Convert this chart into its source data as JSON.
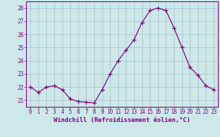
{
  "x": [
    0,
    1,
    2,
    3,
    4,
    5,
    6,
    7,
    8,
    9,
    10,
    11,
    12,
    13,
    14,
    15,
    16,
    17,
    18,
    19,
    20,
    21,
    22,
    23
  ],
  "y": [
    22.0,
    21.6,
    22.0,
    22.1,
    21.8,
    21.1,
    20.9,
    20.85,
    20.8,
    21.8,
    23.0,
    24.0,
    24.8,
    25.6,
    26.9,
    27.8,
    28.0,
    27.8,
    26.5,
    25.0,
    23.5,
    22.9,
    22.1,
    21.8
  ],
  "line_color": "#800080",
  "marker": "+",
  "markersize": 4,
  "linewidth": 0.9,
  "xlabel": "Windchill (Refroidissement éolien,°C)",
  "ylim": [
    20.5,
    28.5
  ],
  "yticks": [
    21,
    22,
    23,
    24,
    25,
    26,
    27,
    28
  ],
  "xlim": [
    -0.5,
    23.5
  ],
  "xticks": [
    0,
    1,
    2,
    3,
    4,
    5,
    6,
    7,
    8,
    9,
    10,
    11,
    12,
    13,
    14,
    15,
    16,
    17,
    18,
    19,
    20,
    21,
    22,
    23
  ],
  "bg_color": "#cce8e8",
  "grid_color": "#aabbcc",
  "line_purple": "#800080",
  "tick_fontsize": 5.5,
  "xlabel_fontsize": 6.5
}
